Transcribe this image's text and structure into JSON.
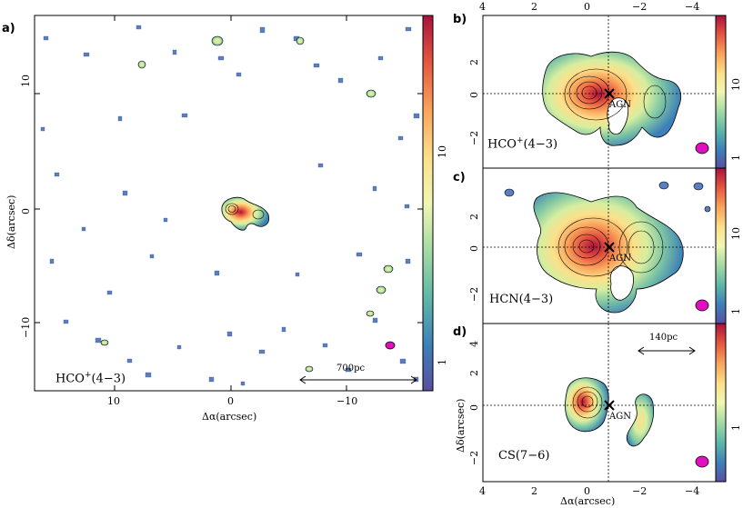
{
  "panels": {
    "a": {
      "letter": "a)",
      "molecule": "HCO",
      "sup": "+",
      "transition": "(4−3)",
      "scale_bar": "700pc",
      "xlabel": "Δα(arcsec)",
      "ylabel": "Δδ(arcsec)",
      "xticks": [
        "10",
        "0",
        "−10"
      ],
      "yticks": [
        "10",
        "0",
        "−10"
      ],
      "colorbar_ticks": [
        "10",
        "1"
      ]
    },
    "b": {
      "letter": "b)",
      "molecule": "HCO",
      "sup": "+",
      "transition": "(4−3)",
      "agn": "AGN",
      "yticks": [
        "2",
        "0",
        "−2"
      ],
      "xticks_top": [
        "4",
        "2",
        "0",
        "−2",
        "−4"
      ],
      "colorbar_ticks": [
        "10",
        "1"
      ]
    },
    "c": {
      "letter": "c)",
      "text": "HCN(4−3)",
      "agn": "AGN",
      "yticks": [
        "2",
        "0",
        "−2"
      ],
      "colorbar_ticks": [
        "10",
        "1"
      ]
    },
    "d": {
      "letter": "d)",
      "text": "CS(7−6)",
      "agn": "AGN",
      "scale_bar": "140pc",
      "yticks": [
        "4",
        "2",
        "0",
        "−2"
      ],
      "xticks": [
        "4",
        "2",
        "0",
        "−2",
        "−4"
      ],
      "xlabel": "Δα(arcsec)",
      "ylabel": "Δδ(arcsec)",
      "colorbar_ticks": [
        "1"
      ]
    }
  },
  "colors": {
    "beam": "#e010c0",
    "frame": "#000000"
  }
}
